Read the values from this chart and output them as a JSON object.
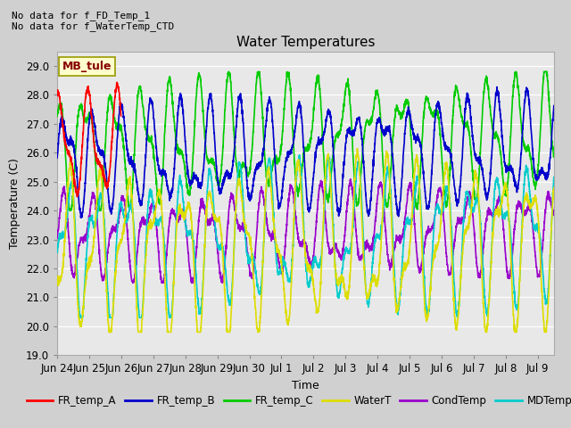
{
  "title": "Water Temperatures",
  "ylabel": "Temperature (C)",
  "xlabel": "Time",
  "note1": "No data for f_FD_Temp_1",
  "note2": "No data for f_WaterTemp_CTD",
  "annotation": "MB_tule",
  "ylim": [
    19.0,
    29.5
  ],
  "yticks": [
    19.0,
    20.0,
    21.0,
    22.0,
    23.0,
    24.0,
    25.0,
    26.0,
    27.0,
    28.0,
    29.0
  ],
  "bg_color": "#e8e8e8",
  "fig_bg_color": "#d0d0d0",
  "series_colors": {
    "FR_temp_A": "#ff0000",
    "FR_temp_B": "#0000cc",
    "FR_temp_C": "#00cc00",
    "WaterT": "#dddd00",
    "CondTemp": "#9900cc",
    "MDTemp_A": "#00cccc"
  },
  "num_days": 15.5,
  "tick_labels": [
    "Jun 24",
    "Jun 25",
    "Jun 26",
    "Jun 27",
    "Jun 28",
    "Jun 29",
    "Jun 30",
    "Jul 1",
    "Jul 2",
    "Jul 3",
    "Jul 4",
    "Jul 5",
    "Jul 6",
    "Jul 7",
    "Jul 8",
    "Jul 9"
  ],
  "tick_positions": [
    0,
    1,
    2,
    3,
    4,
    5,
    6,
    7,
    8,
    9,
    10,
    11,
    12,
    13,
    14,
    15
  ],
  "figsize": [
    6.4,
    4.8
  ],
  "dpi": 100
}
